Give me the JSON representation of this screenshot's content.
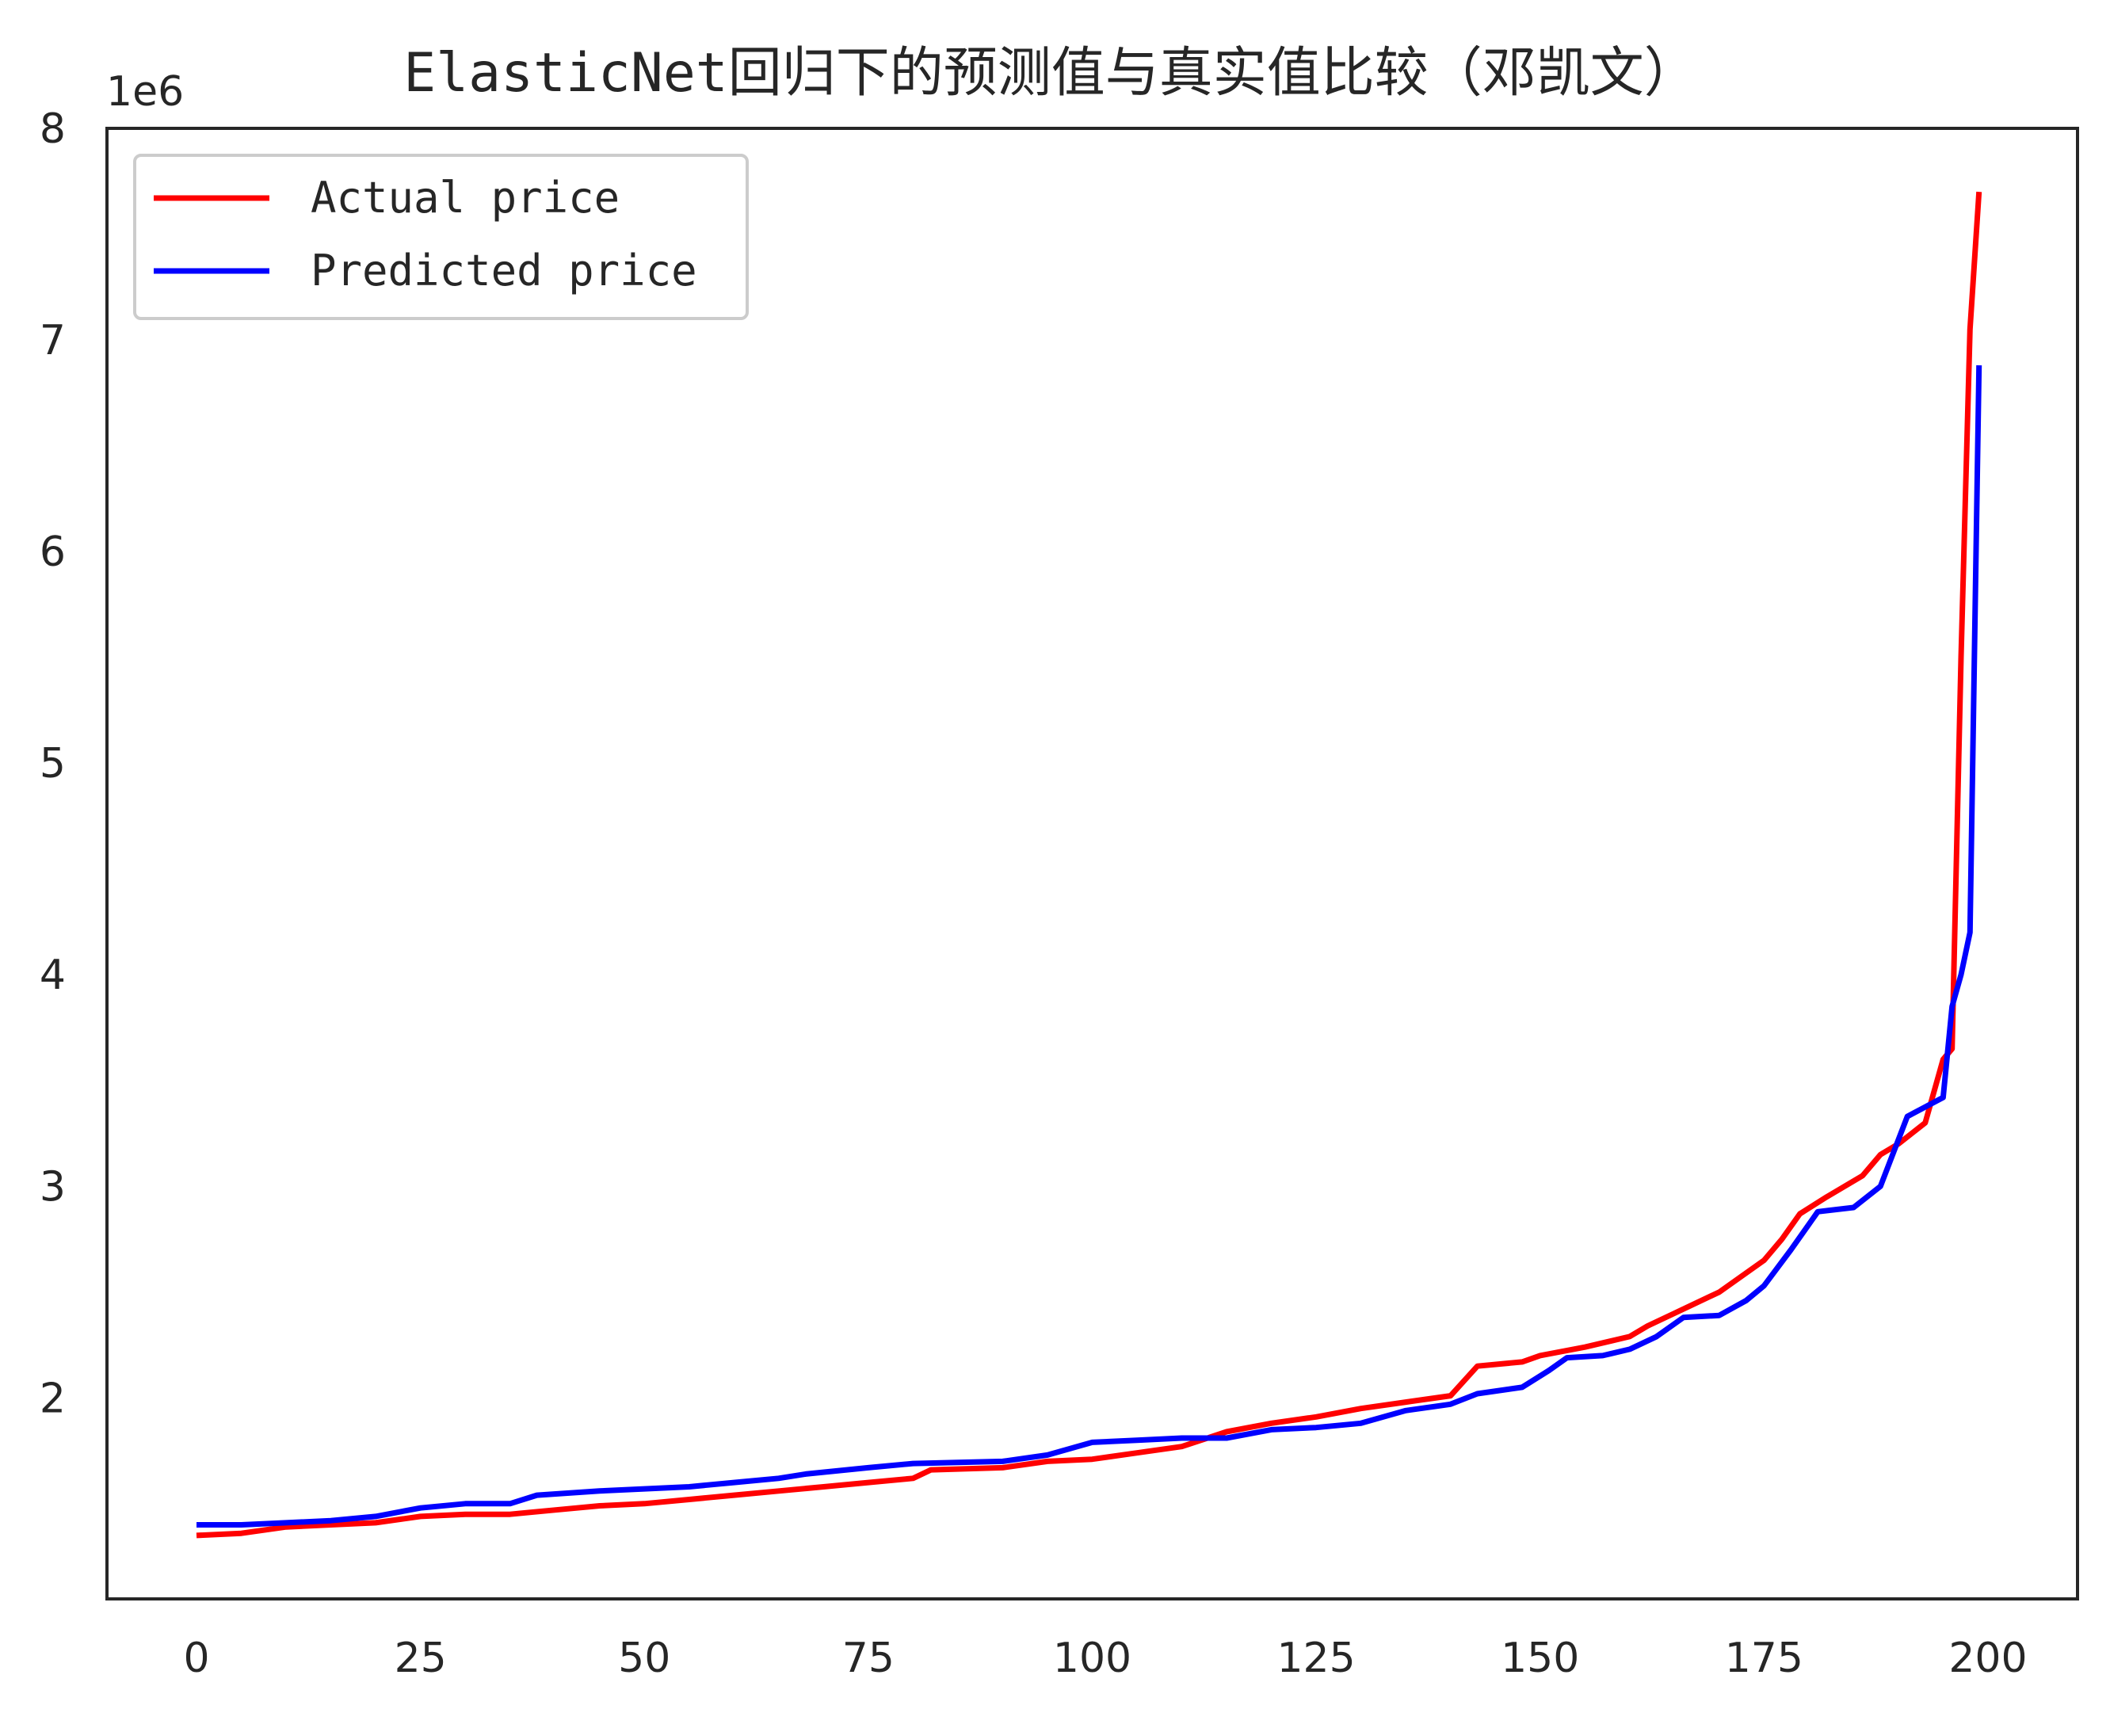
{
  "chart_data": {
    "type": "line",
    "title": "ElasticNet回归下的预测值与真实值比较（邓凯文）",
    "xlabel": "",
    "ylabel": "",
    "y_offset_label": "1e6",
    "xlim": [
      -10,
      210
    ],
    "ylim": [
      1050000,
      8000000
    ],
    "xticks": [
      0,
      25,
      50,
      75,
      100,
      125,
      150,
      175,
      200
    ],
    "yticks": [
      2,
      3,
      4,
      5,
      6,
      7,
      8
    ],
    "yticks_scale": 1000000,
    "grid": false,
    "legend": "upper-left",
    "colors": {
      "actual": "#ff0000",
      "predicted": "#0000ff"
    },
    "series": [
      {
        "name": "Actual price",
        "color": "#ff0000",
        "points": [
          [
            0,
            1350000
          ],
          [
            5,
            1360000
          ],
          [
            10,
            1390000
          ],
          [
            15,
            1400000
          ],
          [
            20,
            1410000
          ],
          [
            25,
            1440000
          ],
          [
            30,
            1450000
          ],
          [
            35,
            1450000
          ],
          [
            40,
            1470000
          ],
          [
            45,
            1490000
          ],
          [
            50,
            1500000
          ],
          [
            55,
            1520000
          ],
          [
            60,
            1540000
          ],
          [
            65,
            1560000
          ],
          [
            70,
            1580000
          ],
          [
            75,
            1600000
          ],
          [
            80,
            1620000
          ],
          [
            82,
            1660000
          ],
          [
            90,
            1670000
          ],
          [
            95,
            1700000
          ],
          [
            100,
            1710000
          ],
          [
            105,
            1740000
          ],
          [
            110,
            1770000
          ],
          [
            115,
            1840000
          ],
          [
            120,
            1880000
          ],
          [
            125,
            1910000
          ],
          [
            130,
            1950000
          ],
          [
            135,
            1980000
          ],
          [
            140,
            2010000
          ],
          [
            143,
            2150000
          ],
          [
            148,
            2170000
          ],
          [
            150,
            2200000
          ],
          [
            155,
            2240000
          ],
          [
            160,
            2290000
          ],
          [
            162,
            2340000
          ],
          [
            165,
            2400000
          ],
          [
            170,
            2500000
          ],
          [
            175,
            2650000
          ],
          [
            177,
            2750000
          ],
          [
            179,
            2870000
          ],
          [
            182,
            2950000
          ],
          [
            186,
            3050000
          ],
          [
            188,
            3150000
          ],
          [
            190,
            3200000
          ],
          [
            193,
            3300000
          ],
          [
            195,
            3600000
          ],
          [
            196,
            3650000
          ],
          [
            197,
            5500000
          ],
          [
            198,
            7050000
          ],
          [
            199,
            7700000
          ]
        ]
      },
      {
        "name": "Predicted price",
        "color": "#0000ff",
        "points": [
          [
            0,
            1400000
          ],
          [
            5,
            1400000
          ],
          [
            10,
            1410000
          ],
          [
            15,
            1420000
          ],
          [
            20,
            1440000
          ],
          [
            25,
            1480000
          ],
          [
            30,
            1500000
          ],
          [
            35,
            1500000
          ],
          [
            38,
            1540000
          ],
          [
            45,
            1560000
          ],
          [
            50,
            1570000
          ],
          [
            55,
            1580000
          ],
          [
            60,
            1600000
          ],
          [
            65,
            1620000
          ],
          [
            68,
            1640000
          ],
          [
            75,
            1670000
          ],
          [
            80,
            1690000
          ],
          [
            90,
            1700000
          ],
          [
            95,
            1730000
          ],
          [
            100,
            1790000
          ],
          [
            105,
            1800000
          ],
          [
            110,
            1810000
          ],
          [
            115,
            1810000
          ],
          [
            120,
            1850000
          ],
          [
            125,
            1860000
          ],
          [
            130,
            1880000
          ],
          [
            135,
            1940000
          ],
          [
            140,
            1970000
          ],
          [
            143,
            2020000
          ],
          [
            148,
            2050000
          ],
          [
            151,
            2130000
          ],
          [
            153,
            2190000
          ],
          [
            157,
            2200000
          ],
          [
            160,
            2230000
          ],
          [
            163,
            2290000
          ],
          [
            166,
            2380000
          ],
          [
            170,
            2390000
          ],
          [
            173,
            2460000
          ],
          [
            175,
            2530000
          ],
          [
            178,
            2700000
          ],
          [
            181,
            2880000
          ],
          [
            185,
            2900000
          ],
          [
            188,
            3000000
          ],
          [
            191,
            3330000
          ],
          [
            195,
            3420000
          ],
          [
            196,
            3850000
          ],
          [
            197,
            4000000
          ],
          [
            198,
            4200000
          ],
          [
            199,
            6880000
          ]
        ]
      }
    ]
  }
}
